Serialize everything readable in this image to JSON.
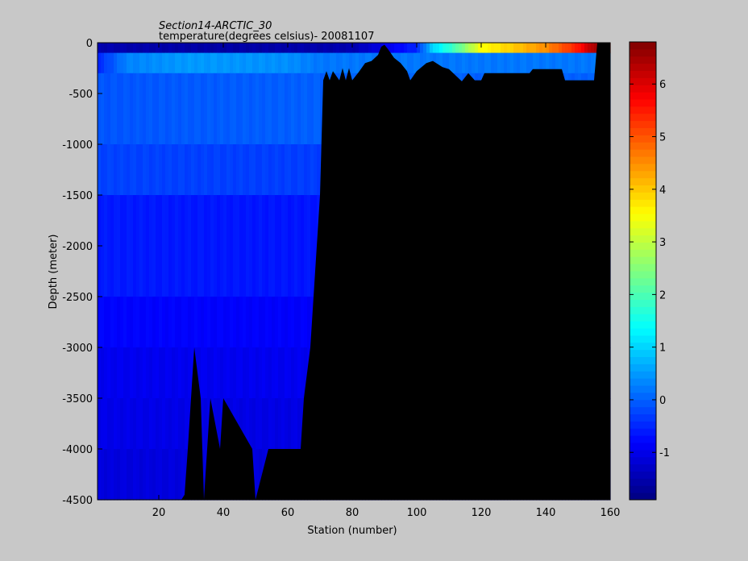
{
  "chart_data": {
    "type": "heatmap",
    "title": "Section14-ARCTIC_30",
    "subtitle": "temperature(degrees  celsius)- 20081107",
    "xlabel": "Station (number)",
    "ylabel": "Depth (meter)",
    "xlim": [
      1,
      160
    ],
    "ylim": [
      -4500,
      0
    ],
    "xticks": [
      20,
      40,
      60,
      80,
      100,
      120,
      140,
      160
    ],
    "yticks": [
      0,
      -500,
      -1000,
      -1500,
      -2000,
      -2500,
      -3000,
      -3500,
      -4000,
      -4500
    ],
    "colorbar": {
      "range": [
        -1.9,
        6.8
      ],
      "ticks": [
        -1,
        0,
        1,
        2,
        3,
        4,
        5,
        6
      ],
      "colormap": "jet"
    },
    "bottom_profile_max_depth": [
      [
        1,
        4500
      ],
      [
        27,
        4500
      ],
      [
        28,
        4450
      ],
      [
        29,
        4000
      ],
      [
        31,
        3000
      ],
      [
        33,
        3500
      ],
      [
        34,
        4500
      ],
      [
        35,
        4000
      ],
      [
        36,
        3500
      ],
      [
        39,
        4000
      ],
      [
        40,
        3500
      ],
      [
        49,
        4000
      ],
      [
        50,
        4500
      ],
      [
        54,
        4000
      ],
      [
        64,
        4000
      ],
      [
        65,
        3500
      ],
      [
        67,
        3000
      ],
      [
        68,
        2500
      ],
      [
        69,
        2000
      ],
      [
        70,
        1500
      ],
      [
        71,
        370
      ],
      [
        72,
        280
      ],
      [
        73,
        370
      ],
      [
        74,
        280
      ],
      [
        76,
        370
      ],
      [
        77,
        250
      ],
      [
        78,
        370
      ],
      [
        79,
        250
      ],
      [
        80,
        370
      ],
      [
        82,
        290
      ],
      [
        84,
        200
      ],
      [
        86,
        180
      ],
      [
        88,
        120
      ],
      [
        89,
        40
      ],
      [
        90,
        20
      ],
      [
        91,
        60
      ],
      [
        93,
        150
      ],
      [
        95,
        200
      ],
      [
        97,
        280
      ],
      [
        98,
        370
      ],
      [
        100,
        280
      ],
      [
        103,
        200
      ],
      [
        105,
        180
      ],
      [
        108,
        240
      ],
      [
        110,
        260
      ],
      [
        112,
        320
      ],
      [
        114,
        380
      ],
      [
        116,
        300
      ],
      [
        118,
        370
      ],
      [
        120,
        370
      ],
      [
        121,
        300
      ],
      [
        135,
        300
      ],
      [
        136,
        260
      ],
      [
        145,
        260
      ],
      [
        146,
        370
      ],
      [
        155,
        370
      ],
      [
        156,
        0
      ],
      [
        160,
        0
      ]
    ],
    "series": [
      {
        "depth_range": [
          0,
          100
        ],
        "values_by_station": [
          [
            1,
            -1.5
          ],
          [
            40,
            -1.6
          ],
          [
            80,
            -1.5
          ],
          [
            100,
            -0.5
          ],
          [
            105,
            1.0
          ],
          [
            112,
            2.0
          ],
          [
            120,
            3.5
          ],
          [
            140,
            4.5
          ],
          [
            150,
            5.5
          ],
          [
            155,
            6.5
          ]
        ]
      },
      {
        "depth_range": [
          100,
          300
        ],
        "values_by_station": [
          [
            1,
            -0.5
          ],
          [
            10,
            0.3
          ],
          [
            30,
            0.5
          ],
          [
            60,
            0.4
          ],
          [
            70,
            0.2
          ]
        ]
      },
      {
        "depth_range": [
          300,
          1000
        ],
        "values_by_station": [
          [
            1,
            -0.1
          ],
          [
            30,
            -0.05
          ],
          [
            70,
            0.0
          ]
        ]
      },
      {
        "depth_range": [
          1000,
          1500
        ],
        "values_by_station": [
          [
            1,
            -0.25
          ],
          [
            70,
            -0.3
          ]
        ]
      },
      {
        "depth_range": [
          1500,
          2500
        ],
        "values_by_station": [
          [
            1,
            -0.6
          ],
          [
            70,
            -0.65
          ]
        ]
      },
      {
        "depth_range": [
          2500,
          3000
        ],
        "values_by_station": [
          [
            1,
            -0.8
          ],
          [
            68,
            -0.85
          ]
        ]
      },
      {
        "depth_range": [
          3000,
          3500
        ],
        "values_by_station": [
          [
            1,
            -0.95
          ],
          [
            67,
            -0.95
          ]
        ]
      },
      {
        "depth_range": [
          3500,
          4000
        ],
        "values_by_station": [
          [
            1,
            -1.0
          ],
          [
            66,
            -1.05
          ]
        ]
      },
      {
        "depth_range": [
          4000,
          4500
        ],
        "values_by_station": [
          [
            1,
            -1.1
          ],
          [
            54,
            -1.1
          ]
        ]
      }
    ]
  }
}
